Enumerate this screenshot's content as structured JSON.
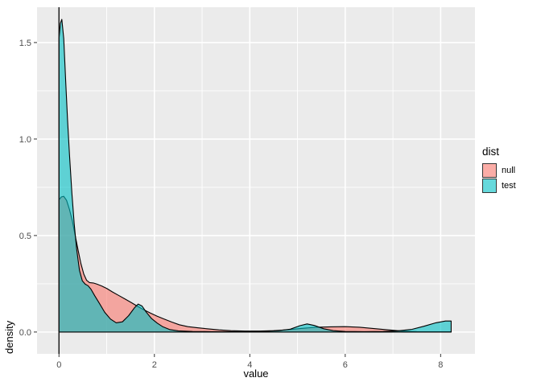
{
  "chart_data": {
    "type": "area",
    "title": "",
    "xlabel": "value",
    "ylabel": "density",
    "xlim": [
      -0.46,
      8.72
    ],
    "ylim": [
      -0.113,
      1.683
    ],
    "x_ticks": [
      {
        "v": 0,
        "label": "0"
      },
      {
        "v": 2,
        "label": "2"
      },
      {
        "v": 4,
        "label": "4"
      },
      {
        "v": 6,
        "label": "6"
      },
      {
        "v": 8,
        "label": "8"
      }
    ],
    "y_ticks": [
      {
        "v": 0,
        "label": "0.0"
      },
      {
        "v": 0.5,
        "label": "0.5"
      },
      {
        "v": 1,
        "label": "1.0"
      },
      {
        "v": 1.5,
        "label": "1.5"
      }
    ],
    "x_minor": [
      1,
      3,
      5,
      7
    ],
    "y_minor": [
      0.25,
      0.75,
      1.25
    ],
    "grid": "on",
    "panel_bg": "#EBEBEB",
    "grid_color": "#FFFFFF",
    "tick_color": "#333333",
    "tick_label_color": "#4D4D4D",
    "outline_color": "#000000",
    "vline_x": 0,
    "fill_alpha": 0.6,
    "legend": {
      "title": "dist",
      "position": "right",
      "entries": [
        {
          "label": "null",
          "color": "#F8766D"
        },
        {
          "label": "test",
          "color": "#00BFC4"
        }
      ]
    },
    "series": [
      {
        "name": "null",
        "color": "#F8766D",
        "points": [
          [
            0,
            0
          ],
          [
            0,
            0.685
          ],
          [
            0.05,
            0.7
          ],
          [
            0.1,
            0.703
          ],
          [
            0.16,
            0.682
          ],
          [
            0.22,
            0.635
          ],
          [
            0.28,
            0.575
          ],
          [
            0.34,
            0.5
          ],
          [
            0.4,
            0.425
          ],
          [
            0.46,
            0.355
          ],
          [
            0.52,
            0.3
          ],
          [
            0.58,
            0.268
          ],
          [
            0.64,
            0.256
          ],
          [
            0.72,
            0.254
          ],
          [
            0.8,
            0.248
          ],
          [
            0.9,
            0.238
          ],
          [
            1,
            0.226
          ],
          [
            1.12,
            0.208
          ],
          [
            1.25,
            0.19
          ],
          [
            1.38,
            0.172
          ],
          [
            1.52,
            0.152
          ],
          [
            1.65,
            0.133
          ],
          [
            1.78,
            0.115
          ],
          [
            1.92,
            0.098
          ],
          [
            2.06,
            0.082
          ],
          [
            2.2,
            0.068
          ],
          [
            2.36,
            0.052
          ],
          [
            2.52,
            0.038
          ],
          [
            2.7,
            0.028
          ],
          [
            2.9,
            0.022
          ],
          [
            3.1,
            0.017
          ],
          [
            3.35,
            0.011
          ],
          [
            3.6,
            0.007
          ],
          [
            3.9,
            0.005
          ],
          [
            4.2,
            0.005
          ],
          [
            4.5,
            0.007
          ],
          [
            4.8,
            0.012
          ],
          [
            5.1,
            0.019
          ],
          [
            5.4,
            0.025
          ],
          [
            5.7,
            0.027
          ],
          [
            6,
            0.028
          ],
          [
            6.3,
            0.025
          ],
          [
            6.6,
            0.018
          ],
          [
            6.9,
            0.011
          ],
          [
            7.2,
            0.005
          ],
          [
            7.5,
            0.002
          ],
          [
            7.8,
            0.001
          ],
          [
            8.1,
            0.001
          ],
          [
            8.22,
            0.001
          ],
          [
            8.22,
            0
          ]
        ]
      },
      {
        "name": "test",
        "color": "#00BFC4",
        "points": [
          [
            0,
            0
          ],
          [
            0,
            1.52
          ],
          [
            0.03,
            1.6
          ],
          [
            0.06,
            1.62
          ],
          [
            0.1,
            1.52
          ],
          [
            0.14,
            1.3
          ],
          [
            0.18,
            1.1
          ],
          [
            0.22,
            0.92
          ],
          [
            0.27,
            0.72
          ],
          [
            0.32,
            0.56
          ],
          [
            0.37,
            0.43
          ],
          [
            0.43,
            0.32
          ],
          [
            0.49,
            0.265
          ],
          [
            0.55,
            0.248
          ],
          [
            0.61,
            0.24
          ],
          [
            0.67,
            0.222
          ],
          [
            0.75,
            0.188
          ],
          [
            0.85,
            0.148
          ],
          [
            0.96,
            0.102
          ],
          [
            1.08,
            0.067
          ],
          [
            1.2,
            0.048
          ],
          [
            1.33,
            0.053
          ],
          [
            1.46,
            0.085
          ],
          [
            1.58,
            0.125
          ],
          [
            1.66,
            0.145
          ],
          [
            1.74,
            0.135
          ],
          [
            1.83,
            0.103
          ],
          [
            1.94,
            0.07
          ],
          [
            2.06,
            0.046
          ],
          [
            2.18,
            0.027
          ],
          [
            2.32,
            0.013
          ],
          [
            2.5,
            0.006
          ],
          [
            2.8,
            0.003
          ],
          [
            3.2,
            0.002
          ],
          [
            3.7,
            0.002
          ],
          [
            4.2,
            0.003
          ],
          [
            4.6,
            0.007
          ],
          [
            4.85,
            0.015
          ],
          [
            5.05,
            0.033
          ],
          [
            5.2,
            0.042
          ],
          [
            5.35,
            0.034
          ],
          [
            5.55,
            0.017
          ],
          [
            5.75,
            0.007
          ],
          [
            6,
            0.003
          ],
          [
            6.4,
            0.002
          ],
          [
            6.8,
            0.003
          ],
          [
            7.1,
            0.006
          ],
          [
            7.4,
            0.014
          ],
          [
            7.65,
            0.03
          ],
          [
            7.9,
            0.048
          ],
          [
            8.1,
            0.057
          ],
          [
            8.22,
            0.057
          ],
          [
            8.22,
            0
          ]
        ]
      }
    ]
  }
}
